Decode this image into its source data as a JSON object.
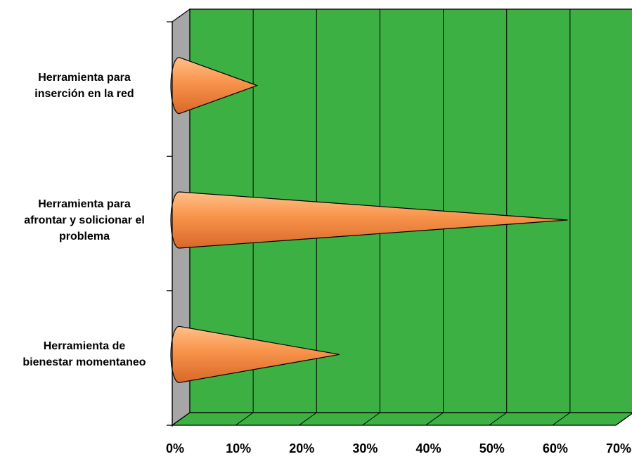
{
  "chart_data": {
    "type": "bar",
    "orientation": "horizontal",
    "bar_shape": "cone",
    "style": "3d",
    "title": "",
    "xlabel": "",
    "ylabel": "",
    "categories": [
      "Herramienta para inserción en la red",
      "Herramienta para afrontar y solicionar el problema",
      "Herramienta de bienestar momentaneo"
    ],
    "category_lines": [
      [
        "Herramienta para",
        "inserción en la red"
      ],
      [
        "Herramienta para",
        "afrontar y solicionar el",
        "problema"
      ],
      [
        "Herramienta de",
        "bienestar momentaneo"
      ]
    ],
    "values": [
      12,
      61,
      25
    ],
    "xlim": [
      0,
      70
    ],
    "xticks": [
      "0%",
      "10%",
      "20%",
      "30%",
      "40%",
      "50%",
      "60%",
      "70%"
    ],
    "grid": true,
    "legend": "none",
    "colors": {
      "plot_back_wall": "#3cb043",
      "plot_floor": "#3cb043",
      "side_wall": "#a6a6a6",
      "bar": "#f7934a",
      "bar_outline": "#000000",
      "gridline": "#000000"
    }
  }
}
